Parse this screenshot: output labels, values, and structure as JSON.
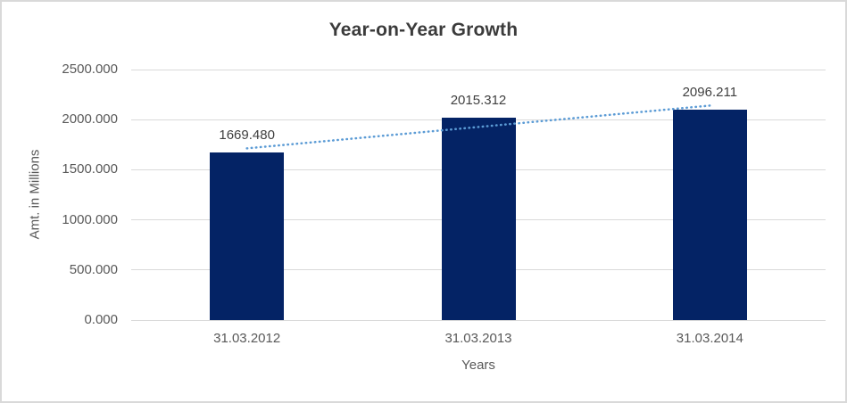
{
  "chart_data": {
    "type": "bar",
    "title": "Year-on-Year Growth",
    "xlabel": "Years",
    "ylabel": "Amt. in Millions",
    "categories": [
      "31.03.2012",
      "31.03.2013",
      "31.03.2014"
    ],
    "series": [
      {
        "name": "Amt. in Millions",
        "type": "column",
        "values": [
          1669.48,
          2015.312,
          2096.211
        ],
        "labels": [
          "1669.480",
          "2015.312",
          "2096.211"
        ],
        "color": "#042365"
      },
      {
        "name": "linear-trendline",
        "type": "dotted-line",
        "values": [
          1713.6,
          1927.0,
          2140.4
        ],
        "color": "#5B9BD5"
      }
    ],
    "ylim": [
      0,
      2500
    ],
    "yticks": [
      {
        "value": 2500,
        "label": "2500.000"
      },
      {
        "value": 2000,
        "label": "2000.000"
      },
      {
        "value": 1500,
        "label": "1500.000"
      },
      {
        "value": 1000,
        "label": "1000.000"
      },
      {
        "value": 500,
        "label": "500.000"
      },
      {
        "value": 0,
        "label": "0.000"
      }
    ],
    "grid": true,
    "legend_position": "none"
  },
  "colors": {
    "bar": "#042365",
    "trendline": "#5B9BD5",
    "gridline": "#D9D9D9",
    "frame_border": "#D9D9D9",
    "title_text": "#3B3B3B",
    "axis_text": "#595959",
    "data_label_text": "#404040"
  }
}
